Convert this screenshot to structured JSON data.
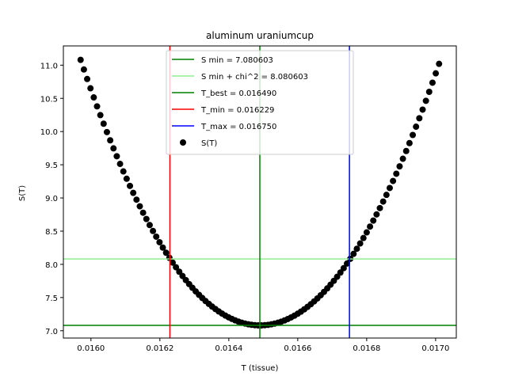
{
  "chart_data": {
    "type": "scatter",
    "title": "aluminum uraniumcup",
    "xlabel": "T (tissue)",
    "ylabel": "S(T)",
    "xlim": [
      0.01592,
      0.01706
    ],
    "ylim": [
      6.89,
      11.29
    ],
    "x_ticks": [
      "0.0160",
      "0.0162",
      "0.0164",
      "0.0166",
      "0.0168",
      "0.0170"
    ],
    "x_tick_values": [
      0.016,
      0.0162,
      0.0164,
      0.0166,
      0.0168,
      0.017
    ],
    "y_ticks": [
      "7.0",
      "7.5",
      "8.0",
      "8.5",
      "9.0",
      "9.5",
      "10.0",
      "10.5",
      "11.0"
    ],
    "y_tick_values": [
      7.0,
      7.5,
      8.0,
      8.5,
      9.0,
      9.5,
      10.0,
      10.5,
      11.0
    ],
    "legend_position": "upper center",
    "hlines": [
      {
        "label": "S min = 7.080603",
        "y": 7.080603,
        "color": "#008000"
      },
      {
        "label": "S min + chi^2 = 8.080603",
        "y": 8.080603,
        "color": "#90ee90"
      }
    ],
    "vlines": [
      {
        "label": "T_best = 0.016490",
        "x": 0.01649,
        "color": "#008000"
      },
      {
        "label": "T_min = 0.016229",
        "x": 0.016229,
        "color": "#ff0000"
      },
      {
        "label": "T_max = 0.016750",
        "x": 0.01675,
        "color": "#0000ff"
      }
    ],
    "scatter_series": {
      "label": "S(T)",
      "color": "#000000",
      "x_start": 0.01597,
      "x_end": 0.01701,
      "count": 110,
      "vertex_x": 0.01649,
      "vertex_y": 7.080603,
      "left_end_y": 11.08,
      "right_end_y": 11.02
    }
  }
}
